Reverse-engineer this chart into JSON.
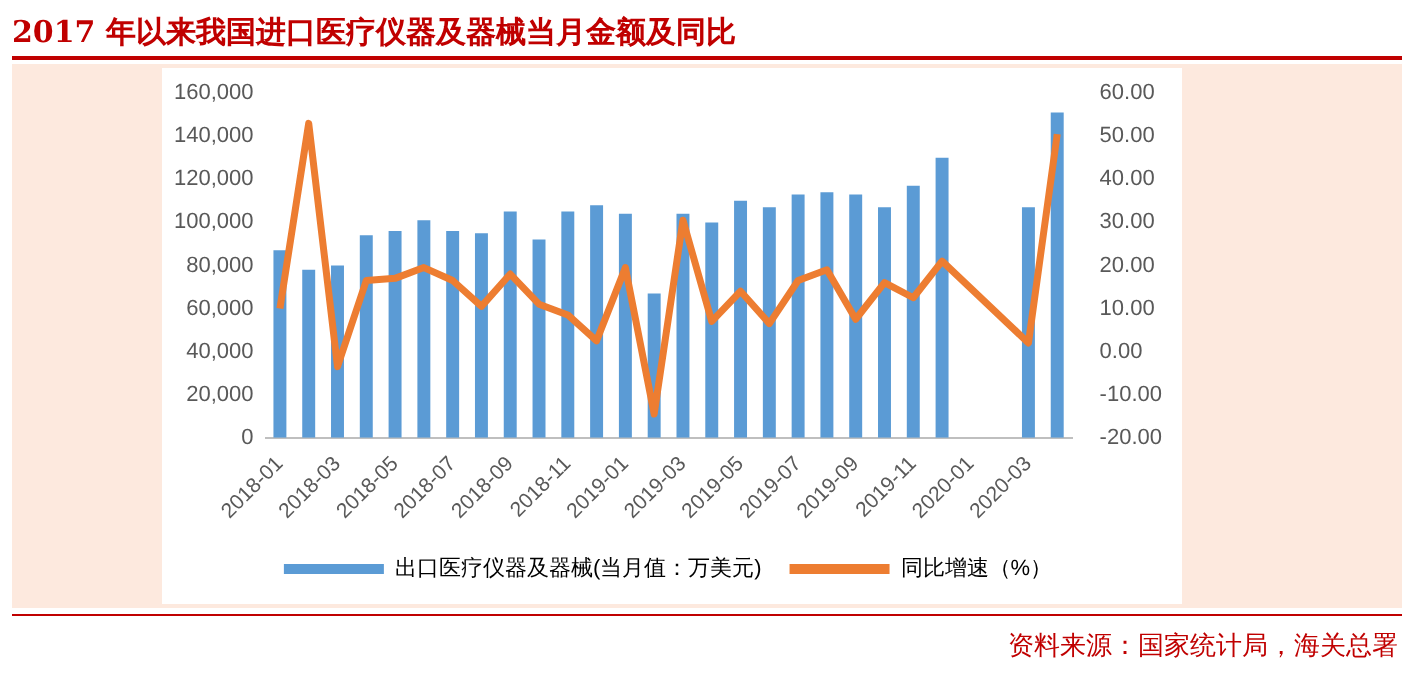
{
  "chart_data": {
    "type": "bar",
    "title": "2017 年以来我国进口医疗仪器及器械当月金额及同比",
    "categories": [
      "2018-01",
      null,
      "2018-03",
      null,
      "2018-05",
      null,
      "2018-07",
      null,
      "2018-09",
      null,
      "2018-11",
      null,
      "2019-01",
      null,
      "2019-03",
      null,
      "2019-05",
      null,
      "2019-07",
      null,
      "2019-09",
      null,
      "2019-11",
      null,
      "2020-01",
      null,
      "2020-03",
      null
    ],
    "series": [
      {
        "name": "出口医疗仪器及器械(当月值：万美元)",
        "color": "#5b9bd5",
        "values": [
          87000,
          78000,
          80000,
          94000,
          96000,
          101000,
          96000,
          95000,
          105000,
          92000,
          105000,
          108000,
          104000,
          67000,
          104000,
          100000,
          110000,
          107000,
          113000,
          114000,
          113000,
          107000,
          117000,
          130000,
          null,
          null,
          107000,
          151000
        ]
      },
      {
        "name": "同比增速（%）",
        "type": "line",
        "axis": "y2",
        "color": "#ed7d31",
        "values": [
          10,
          53,
          -3.5,
          16.5,
          17,
          19.5,
          16.5,
          10.5,
          18,
          11,
          8.5,
          2.5,
          19.5,
          -14.5,
          30.5,
          7,
          14,
          6.5,
          16.5,
          19,
          7.5,
          16,
          12.5,
          21,
          null,
          null,
          2,
          50.5
        ]
      }
    ],
    "ylim": [
      0,
      160000
    ],
    "yticks": [
      0,
      {
        "value": 20000,
        "label": "20,000"
      },
      {
        "value": 40000,
        "label": "40,000"
      },
      {
        "value": 60000,
        "label": "60,000"
      },
      {
        "value": 80000,
        "label": "80,000"
      },
      {
        "value": 100000,
        "label": "100,000"
      },
      {
        "value": 120000,
        "label": "120,000"
      },
      {
        "value": 140000,
        "label": "140,000"
      },
      {
        "value": 160000,
        "label": "160,000"
      }
    ],
    "y2lim": [
      -20,
      60
    ],
    "y2ticks": [
      {
        "value": -20,
        "label": "-20.00"
      },
      {
        "value": -10,
        "label": "-10.00"
      },
      {
        "value": 0,
        "label": "0.00"
      },
      {
        "value": 10,
        "label": "10.00"
      },
      {
        "value": 20,
        "label": "20.00"
      },
      {
        "value": 30,
        "label": "30.00"
      },
      {
        "value": 40,
        "label": "40.00"
      },
      {
        "value": 50,
        "label": "50.00"
      },
      {
        "value": 60,
        "label": "60.00"
      }
    ],
    "grid": false,
    "legend": "bottom",
    "marker": "none",
    "annotations": [
      "资料来源：国家统计局，海关总署"
    ]
  }
}
